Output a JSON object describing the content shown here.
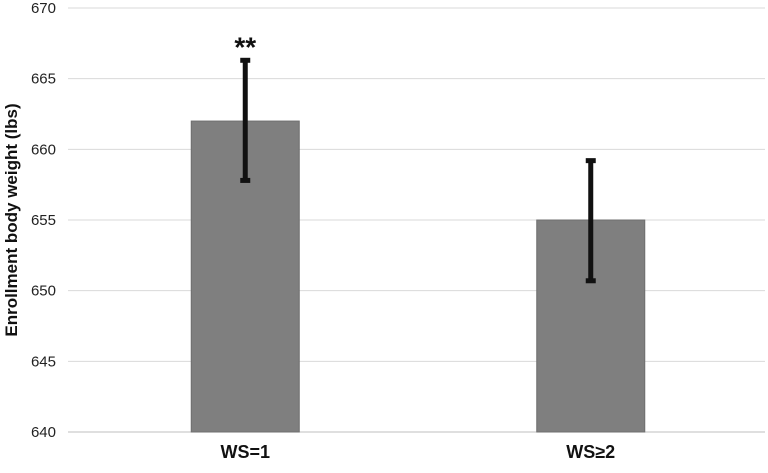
{
  "chart_data": {
    "type": "bar",
    "categories": [
      "WS=1",
      "WS≥2"
    ],
    "values": [
      662,
      655
    ],
    "error_low": [
      657.8,
      650.7
    ],
    "error_high": [
      666.3,
      659.2
    ],
    "annotations": [
      "**",
      ""
    ],
    "ylabel": "Enrollment body weight (lbs)",
    "xlabel": "",
    "title": "",
    "ylim": [
      640,
      670
    ],
    "yticks": [
      640,
      645,
      650,
      655,
      660,
      665,
      670
    ],
    "grid": true,
    "colors": {
      "bar": "#7f7f7f",
      "error_bar": "#111111",
      "grid": "#d9d9d9"
    }
  }
}
